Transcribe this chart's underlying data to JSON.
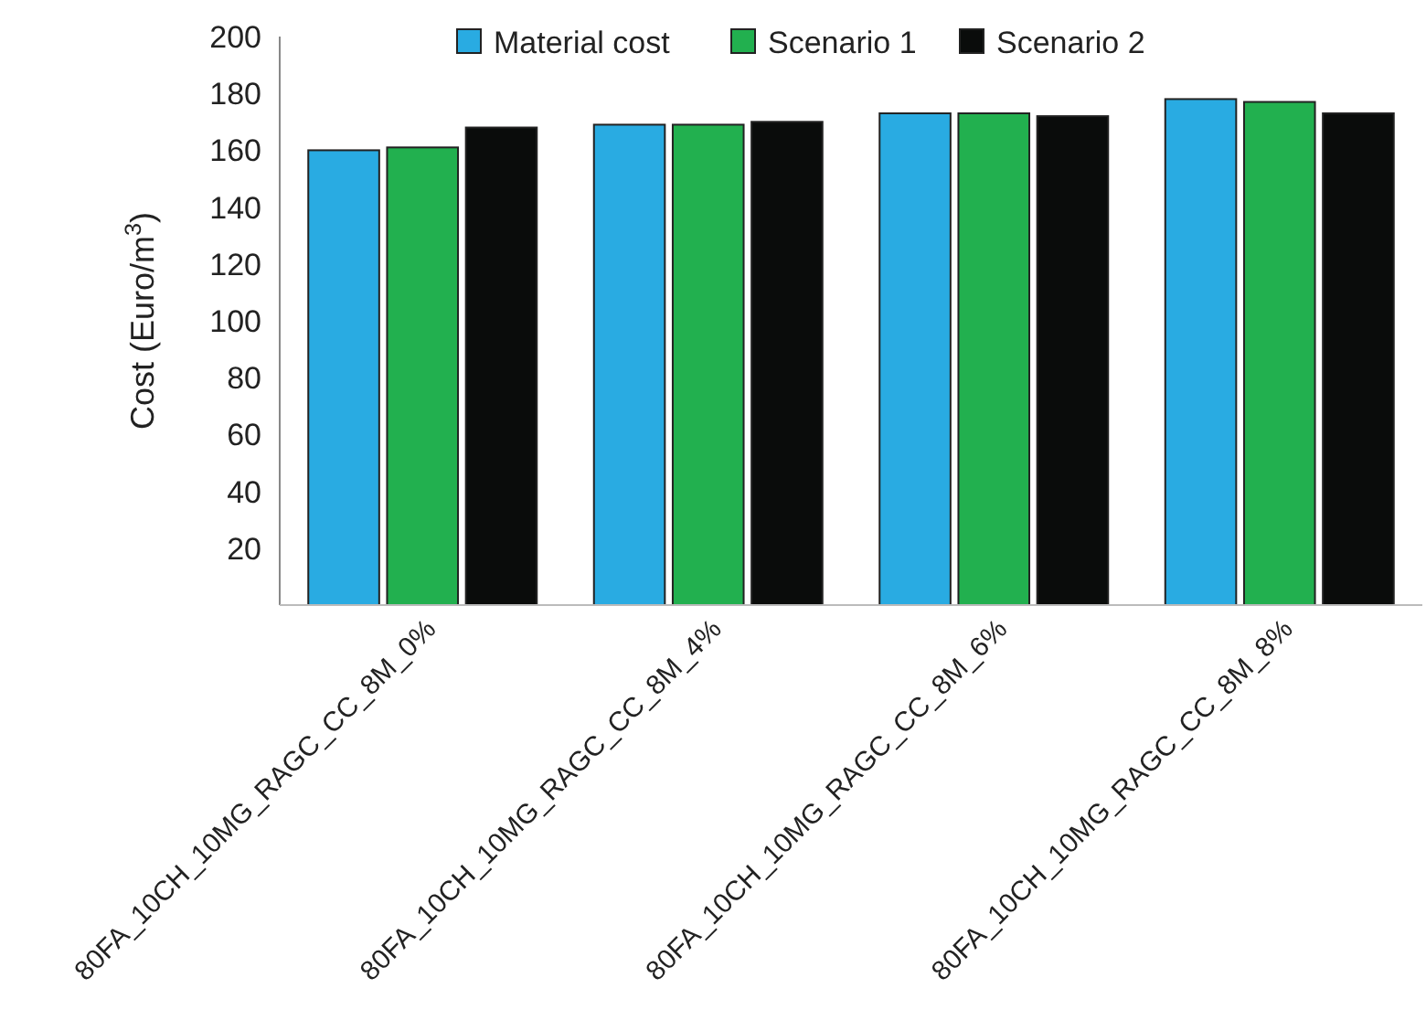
{
  "chart_data": {
    "type": "bar",
    "ylabel": "Cost (Euro/m$^{3}$)",
    "categories": [
      "80FA_10CH_10MG_RAGC_CC_8M_0%",
      "80FA_10CH_10MG_RAGC_CC_8M_4%",
      "80FA_10CH_10MG_RAGC_CC_8M_6%",
      "80FA_10CH_10MG_RAGC_CC_8M_8%"
    ],
    "series": [
      {
        "name": "Material cost",
        "color": "#29abe2",
        "values": [
          160,
          169,
          173,
          178
        ]
      },
      {
        "name": "Scenario 1",
        "color": "#22b04f",
        "values": [
          161,
          169,
          173,
          177
        ]
      },
      {
        "name": "Scenario 2",
        "color": "#0a0c0b",
        "values": [
          168,
          170,
          172,
          173
        ]
      }
    ],
    "ylim": [
      0,
      200
    ],
    "yticks": [
      20,
      40,
      60,
      80,
      100,
      120,
      140,
      160,
      180,
      200
    ],
    "grid": false,
    "legend": "top"
  }
}
